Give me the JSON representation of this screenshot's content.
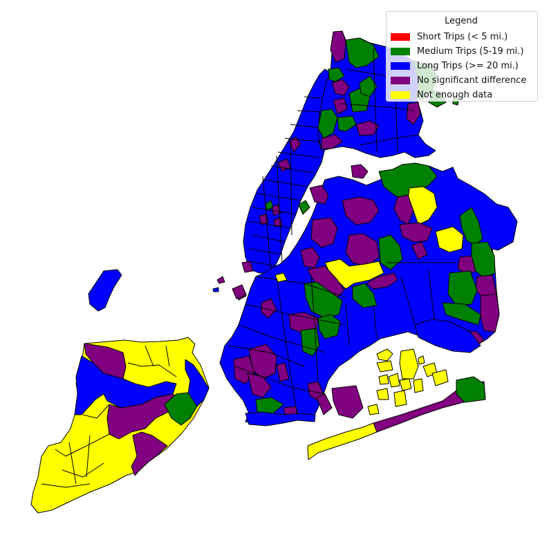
{
  "legend": {
    "title": "Legend",
    "items": [
      {
        "label": "Short Trips (< 5 mi.)",
        "color": "#ff0000"
      },
      {
        "label": "Medium Trips (5-19 mi.)",
        "color": "#008000"
      },
      {
        "label": "Long Trips (>= 20 mi.)",
        "color": "#0000ff"
      },
      {
        "label": "No significant difference",
        "color": "#800080"
      },
      {
        "label": "Not enough data",
        "color": "#ffff00"
      }
    ]
  },
  "colors": {
    "short": "#ff0000",
    "medium": "#008000",
    "long": "#0000ff",
    "none": "#800080",
    "nodata": "#ffff00"
  }
}
